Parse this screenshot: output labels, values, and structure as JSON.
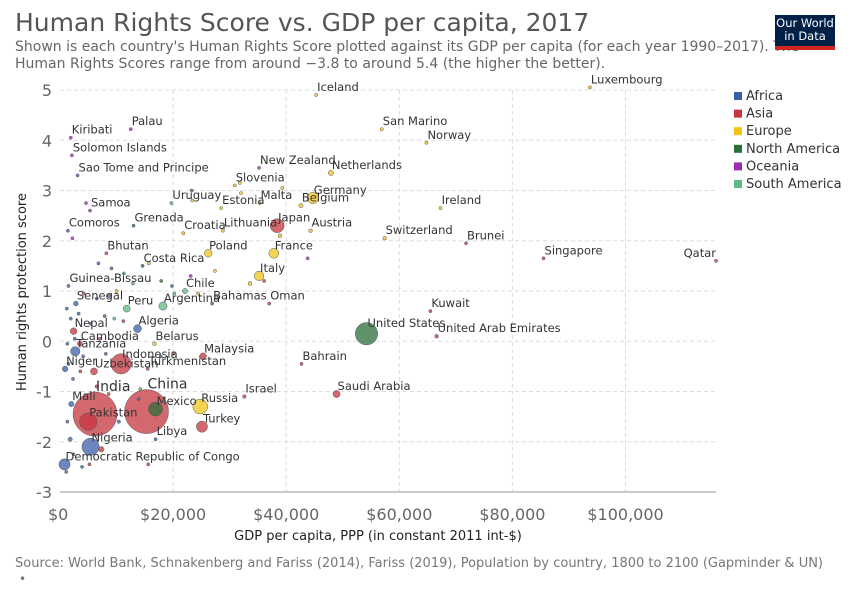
{
  "header": {
    "title": "Human Rights Score vs. GDP per capita, 2017",
    "subtitle_line1": "Shown is each country's Human Rights Score plotted against its GDP per capita (for each year 1990–2017). The",
    "subtitle_line2": "Human Rights Scores range from around −3.8 to around 5.4 (the higher the better).",
    "logo_line1": "Our World",
    "logo_line2": "in Data"
  },
  "footer": {
    "source": "Source: World Bank, Schnakenberg and Fariss (2014), Fariss (2019), Population by country, 1800 to 2100 (Gapminder & UN)",
    "bullet": "•"
  },
  "colors": {
    "Africa": "#3b5ea8",
    "Asia": "#c6363f",
    "Europe": "#f0c419",
    "North America": "#2b6e3a",
    "Oceania": "#9b2fae",
    "South America": "#5dbb82"
  },
  "chart_data": {
    "type": "scatter",
    "xlabel": "GDP per capita, PPP (in constant 2011 int-$)",
    "ylabel": "Human rights protection score",
    "xlim": [
      0,
      116000
    ],
    "ylim": [
      -3,
      5
    ],
    "x_ticks": [
      0,
      20000,
      40000,
      60000,
      80000,
      100000
    ],
    "x_tick_labels": [
      "$0",
      "$20,000",
      "$40,000",
      "$60,000",
      "$80,000",
      "$100,000"
    ],
    "y_ticks": [
      -3,
      -2,
      -1,
      0,
      1,
      2,
      3,
      4,
      5
    ],
    "y_tick_labels": [
      "-3",
      "-2",
      "-1",
      "0",
      "1",
      "2",
      "3",
      "4",
      "5"
    ],
    "grid": true,
    "legend_position": "top-right",
    "legend": [
      "Africa",
      "Asia",
      "Europe",
      "North America",
      "Oceania",
      "South America"
    ],
    "points": [
      {
        "label": "Iceland",
        "x": 45300,
        "y": 4.9,
        "region": "Europe",
        "pop": 0.3
      },
      {
        "label": "Luxembourg",
        "x": 93700,
        "y": 5.05,
        "region": "Europe",
        "pop": 0.6
      },
      {
        "label": "San Marino",
        "x": 56900,
        "y": 4.22,
        "region": "Europe",
        "pop": 0.03
      },
      {
        "label": "Norway",
        "x": 64800,
        "y": 3.95,
        "region": "Europe",
        "pop": 5.3
      },
      {
        "label": "Kiribati",
        "x": 1900,
        "y": 4.05,
        "region": "Oceania",
        "pop": 0.1
      },
      {
        "label": "Palau",
        "x": 12500,
        "y": 4.22,
        "region": "Oceania",
        "pop": 0.02
      },
      {
        "label": "Solomon Islands",
        "x": 2100,
        "y": 3.7,
        "region": "Oceania",
        "pop": 0.6
      },
      {
        "label": "Sao Tome and Principe",
        "x": 3100,
        "y": 3.3,
        "region": "Africa",
        "pop": 0.2
      },
      {
        "label": "New Zealand",
        "x": 35200,
        "y": 3.45,
        "region": "Oceania",
        "pop": 4.7
      },
      {
        "label": "Netherlands",
        "x": 47900,
        "y": 3.35,
        "region": "Europe",
        "pop": 17.0
      },
      {
        "label": "Slovenia",
        "x": 30900,
        "y": 3.1,
        "region": "Europe",
        "pop": 2.1
      },
      {
        "label": "Germany",
        "x": 44700,
        "y": 2.85,
        "region": "Europe",
        "pop": 82.0
      },
      {
        "label": "Malta",
        "x": 35300,
        "y": 2.75,
        "region": "Europe",
        "pop": 0.4
      },
      {
        "label": "Belgium",
        "x": 42600,
        "y": 2.7,
        "region": "Europe",
        "pop": 11.4
      },
      {
        "label": "Estonia",
        "x": 28500,
        "y": 2.65,
        "region": "Europe",
        "pop": 1.3
      },
      {
        "label": "Uruguay",
        "x": 19700,
        "y": 2.75,
        "region": "South America",
        "pop": 3.5
      },
      {
        "label": "Samoa",
        "x": 5300,
        "y": 2.6,
        "region": "Oceania",
        "pop": 0.2
      },
      {
        "label": "Ireland",
        "x": 67300,
        "y": 2.65,
        "region": "Europe",
        "pop": 4.8
      },
      {
        "label": "Japan",
        "x": 38400,
        "y": 2.3,
        "region": "Asia",
        "pop": 127.0
      },
      {
        "label": "Austria",
        "x": 44300,
        "y": 2.2,
        "region": "Europe",
        "pop": 8.8
      },
      {
        "label": "Lithuania",
        "x": 28800,
        "y": 2.2,
        "region": "Europe",
        "pop": 2.9
      },
      {
        "label": "Croatia",
        "x": 21800,
        "y": 2.15,
        "region": "Europe",
        "pop": 4.1
      },
      {
        "label": "Grenada",
        "x": 13000,
        "y": 2.3,
        "region": "North America",
        "pop": 0.1
      },
      {
        "label": "Comoros",
        "x": 1400,
        "y": 2.2,
        "region": "Africa",
        "pop": 0.8
      },
      {
        "label": "Switzerland",
        "x": 57400,
        "y": 2.05,
        "region": "Europe",
        "pop": 8.5
      },
      {
        "label": "Brunei",
        "x": 71800,
        "y": 1.95,
        "region": "Asia",
        "pop": 0.4
      },
      {
        "label": "France",
        "x": 37800,
        "y": 1.75,
        "region": "Europe",
        "pop": 65.0
      },
      {
        "label": "Poland",
        "x": 26200,
        "y": 1.75,
        "region": "Europe",
        "pop": 38.0
      },
      {
        "label": "Bhutan",
        "x": 8200,
        "y": 1.75,
        "region": "Asia",
        "pop": 0.8
      },
      {
        "label": "Singapore",
        "x": 85500,
        "y": 1.65,
        "region": "Asia",
        "pop": 5.7
      },
      {
        "label": "Qatar",
        "x": 116800,
        "y": 1.6,
        "region": "Asia",
        "pop": 2.6
      },
      {
        "label": "Costa Rica",
        "x": 14600,
        "y": 1.5,
        "region": "North America",
        "pop": 4.9
      },
      {
        "label": "Italy",
        "x": 35200,
        "y": 1.3,
        "region": "Europe",
        "pop": 60.0
      },
      {
        "label": "Chile",
        "x": 22100,
        "y": 1.0,
        "region": "South America",
        "pop": 18.0
      },
      {
        "label": "Guinea-Bissau",
        "x": 1500,
        "y": 1.1,
        "region": "Africa",
        "pop": 1.8
      },
      {
        "label": "Bahamas",
        "x": 26900,
        "y": 0.75,
        "region": "North America",
        "pop": 0.4
      },
      {
        "label": "Argentina",
        "x": 18200,
        "y": 0.7,
        "region": "South America",
        "pop": 44.0
      },
      {
        "label": "Oman",
        "x": 37000,
        "y": 0.75,
        "region": "Asia",
        "pop": 4.6
      },
      {
        "label": "Senegal",
        "x": 2800,
        "y": 0.75,
        "region": "Africa",
        "pop": 15.0
      },
      {
        "label": "Peru",
        "x": 11800,
        "y": 0.65,
        "region": "South America",
        "pop": 32.0
      },
      {
        "label": "Kuwait",
        "x": 65500,
        "y": 0.6,
        "region": "Asia",
        "pop": 4.1
      },
      {
        "label": "Algeria",
        "x": 13700,
        "y": 0.25,
        "region": "Africa",
        "pop": 41.0
      },
      {
        "label": "Nepal",
        "x": 2400,
        "y": 0.2,
        "region": "Asia",
        "pop": 29.0
      },
      {
        "label": "United States",
        "x": 54200,
        "y": 0.15,
        "region": "North America",
        "pop": 325.0
      },
      {
        "label": "United Arab Emirates",
        "x": 66600,
        "y": 0.1,
        "region": "Asia",
        "pop": 9.4
      },
      {
        "label": "Cambodia",
        "x": 3500,
        "y": -0.05,
        "region": "Asia",
        "pop": 16.0
      },
      {
        "label": "Belarus",
        "x": 16700,
        "y": -0.05,
        "region": "Europe",
        "pop": 9.5
      },
      {
        "label": "Tanzania",
        "x": 2700,
        "y": -0.2,
        "region": "Africa",
        "pop": 57.0
      },
      {
        "label": "Malaysia",
        "x": 25300,
        "y": -0.3,
        "region": "Asia",
        "pop": 31.0
      },
      {
        "label": "Indonesia",
        "x": 10800,
        "y": -0.45,
        "region": "Asia",
        "pop": 264.0
      },
      {
        "label": "Turkmenistan",
        "x": 15500,
        "y": -0.55,
        "region": "Asia",
        "pop": 5.8
      },
      {
        "label": "Niger",
        "x": 900,
        "y": -0.55,
        "region": "Africa",
        "pop": 21.0
      },
      {
        "label": "Uzbekistan",
        "x": 6000,
        "y": -0.6,
        "region": "Asia",
        "pop": 32.0
      },
      {
        "label": "Bahrain",
        "x": 42700,
        "y": -0.45,
        "region": "Asia",
        "pop": 1.5
      },
      {
        "label": "India",
        "x": 6200,
        "y": -1.45,
        "region": "Asia",
        "pop": 1339.0
      },
      {
        "label": "China",
        "x": 15300,
        "y": -1.4,
        "region": "Asia",
        "pop": 1386.0
      },
      {
        "label": "Saudi Arabia",
        "x": 48900,
        "y": -1.05,
        "region": "Asia",
        "pop": 33.0
      },
      {
        "label": "Israel",
        "x": 32600,
        "y": -1.1,
        "region": "Asia",
        "pop": 8.7
      },
      {
        "label": "Russia",
        "x": 24800,
        "y": -1.3,
        "region": "Europe",
        "pop": 144.0
      },
      {
        "label": "Mali",
        "x": 2000,
        "y": -1.25,
        "region": "Africa",
        "pop": 18.5
      },
      {
        "label": "Mexico",
        "x": 16900,
        "y": -1.35,
        "region": "North America",
        "pop": 129.0
      },
      {
        "label": "Pakistan",
        "x": 5000,
        "y": -1.6,
        "region": "Asia",
        "pop": 197.0
      },
      {
        "label": "Turkey",
        "x": 25100,
        "y": -1.7,
        "region": "Asia",
        "pop": 81.0
      },
      {
        "label": "Nigeria",
        "x": 5400,
        "y": -2.1,
        "region": "Africa",
        "pop": 191.0
      },
      {
        "label": "Libya",
        "x": 16900,
        "y": -1.95,
        "region": "Africa",
        "pop": 6.4
      },
      {
        "label": "Democratic Republic of Congo",
        "x": 800,
        "y": -2.45,
        "region": "Africa",
        "pop": 81.0
      }
    ],
    "unlabeled_points": [
      {
        "x": 2200,
        "y": 2.05,
        "region": "Oceania",
        "pop": 2
      },
      {
        "x": 4600,
        "y": 2.75,
        "region": "Oceania",
        "pop": 1
      },
      {
        "x": 6800,
        "y": 1.55,
        "region": "Africa",
        "pop": 2
      },
      {
        "x": 9100,
        "y": 1.45,
        "region": "Africa",
        "pop": 2
      },
      {
        "x": 11300,
        "y": 1.35,
        "region": "South America",
        "pop": 2
      },
      {
        "x": 15700,
        "y": 1.55,
        "region": "Europe",
        "pop": 1
      },
      {
        "x": 17900,
        "y": 1.2,
        "region": "North America",
        "pop": 2
      },
      {
        "x": 19800,
        "y": 1.1,
        "region": "Africa",
        "pop": 2
      },
      {
        "x": 12900,
        "y": 1.15,
        "region": "South America",
        "pop": 1
      },
      {
        "x": 10000,
        "y": 1.0,
        "region": "Europe",
        "pop": 2
      },
      {
        "x": 8700,
        "y": 0.9,
        "region": "Africa",
        "pop": 3
      },
      {
        "x": 6500,
        "y": 0.85,
        "region": "Africa",
        "pop": 2
      },
      {
        "x": 4200,
        "y": 0.95,
        "region": "Asia",
        "pop": 2
      },
      {
        "x": 3300,
        "y": 0.55,
        "region": "Africa",
        "pop": 4
      },
      {
        "x": 1200,
        "y": 0.65,
        "region": "Africa",
        "pop": 3
      },
      {
        "x": 7900,
        "y": 0.5,
        "region": "North America",
        "pop": 2
      },
      {
        "x": 9600,
        "y": 0.45,
        "region": "South America",
        "pop": 4
      },
      {
        "x": 11200,
        "y": 0.4,
        "region": "Asia",
        "pop": 3
      },
      {
        "x": 5400,
        "y": 0.35,
        "region": "Africa",
        "pop": 5
      },
      {
        "x": 1900,
        "y": 0.45,
        "region": "Africa",
        "pop": 3
      },
      {
        "x": 2600,
        "y": 0.05,
        "region": "Africa",
        "pop": 4
      },
      {
        "x": 1300,
        "y": -0.05,
        "region": "Africa",
        "pop": 6
      },
      {
        "x": 4100,
        "y": -0.3,
        "region": "Africa",
        "pop": 5
      },
      {
        "x": 7000,
        "y": 0.05,
        "region": "Asia",
        "pop": 4
      },
      {
        "x": 8100,
        "y": -0.25,
        "region": "Africa",
        "pop": 6
      },
      {
        "x": 1500,
        "y": -0.45,
        "region": "Africa",
        "pop": 5
      },
      {
        "x": 2300,
        "y": -0.75,
        "region": "Africa",
        "pop": 3
      },
      {
        "x": 3600,
        "y": -0.6,
        "region": "Asia",
        "pop": 5
      },
      {
        "x": 6500,
        "y": -0.9,
        "region": "Asia",
        "pop": 8
      },
      {
        "x": 1300,
        "y": -1.6,
        "region": "Africa",
        "pop": 5
      },
      {
        "x": 1800,
        "y": -1.95,
        "region": "Africa",
        "pop": 12
      },
      {
        "x": 2400,
        "y": -2.25,
        "region": "Africa",
        "pop": 5
      },
      {
        "x": 1100,
        "y": -2.6,
        "region": "Africa",
        "pop": 3
      },
      {
        "x": 3900,
        "y": -2.5,
        "region": "Africa",
        "pop": 4
      },
      {
        "x": 8600,
        "y": -1.05,
        "region": "Asia",
        "pop": 6
      },
      {
        "x": 13900,
        "y": -1.15,
        "region": "Africa",
        "pop": 3
      },
      {
        "x": 10400,
        "y": -1.6,
        "region": "Africa",
        "pop": 8
      },
      {
        "x": 7300,
        "y": -2.15,
        "region": "Asia",
        "pop": 20
      },
      {
        "x": 5200,
        "y": -2.45,
        "region": "Asia",
        "pop": 6
      },
      {
        "x": 14200,
        "y": -0.95,
        "region": "South America",
        "pop": 4
      },
      {
        "x": 23100,
        "y": 1.3,
        "region": "Oceania",
        "pop": 1
      },
      {
        "x": 27400,
        "y": 1.4,
        "region": "Europe",
        "pop": 2
      },
      {
        "x": 33600,
        "y": 1.15,
        "region": "Europe",
        "pop": 10
      },
      {
        "x": 36100,
        "y": 1.2,
        "region": "Asia",
        "pop": 6
      },
      {
        "x": 38900,
        "y": 2.1,
        "region": "Europe",
        "pop": 10
      },
      {
        "x": 32000,
        "y": 2.95,
        "region": "Europe",
        "pop": 5
      },
      {
        "x": 39300,
        "y": 3.05,
        "region": "Europe",
        "pop": 1
      },
      {
        "x": 31800,
        "y": 3.15,
        "region": "Europe",
        "pop": 2
      },
      {
        "x": 23400,
        "y": 2.8,
        "region": "Europe",
        "pop": 2
      },
      {
        "x": 23300,
        "y": 3.0,
        "region": "North America",
        "pop": 1
      },
      {
        "x": 24400,
        "y": 0.95,
        "region": "Europe",
        "pop": 2
      },
      {
        "x": 20200,
        "y": 0.95,
        "region": "South America",
        "pop": 3
      },
      {
        "x": 43800,
        "y": 1.65,
        "region": "Oceania",
        "pop": 1
      },
      {
        "x": 20000,
        "y": -0.25,
        "region": "Asia",
        "pop": 3
      },
      {
        "x": 17800,
        "y": -0.3,
        "region": "Africa",
        "pop": 2
      },
      {
        "x": 15600,
        "y": -2.45,
        "region": "Asia",
        "pop": 5
      }
    ]
  }
}
